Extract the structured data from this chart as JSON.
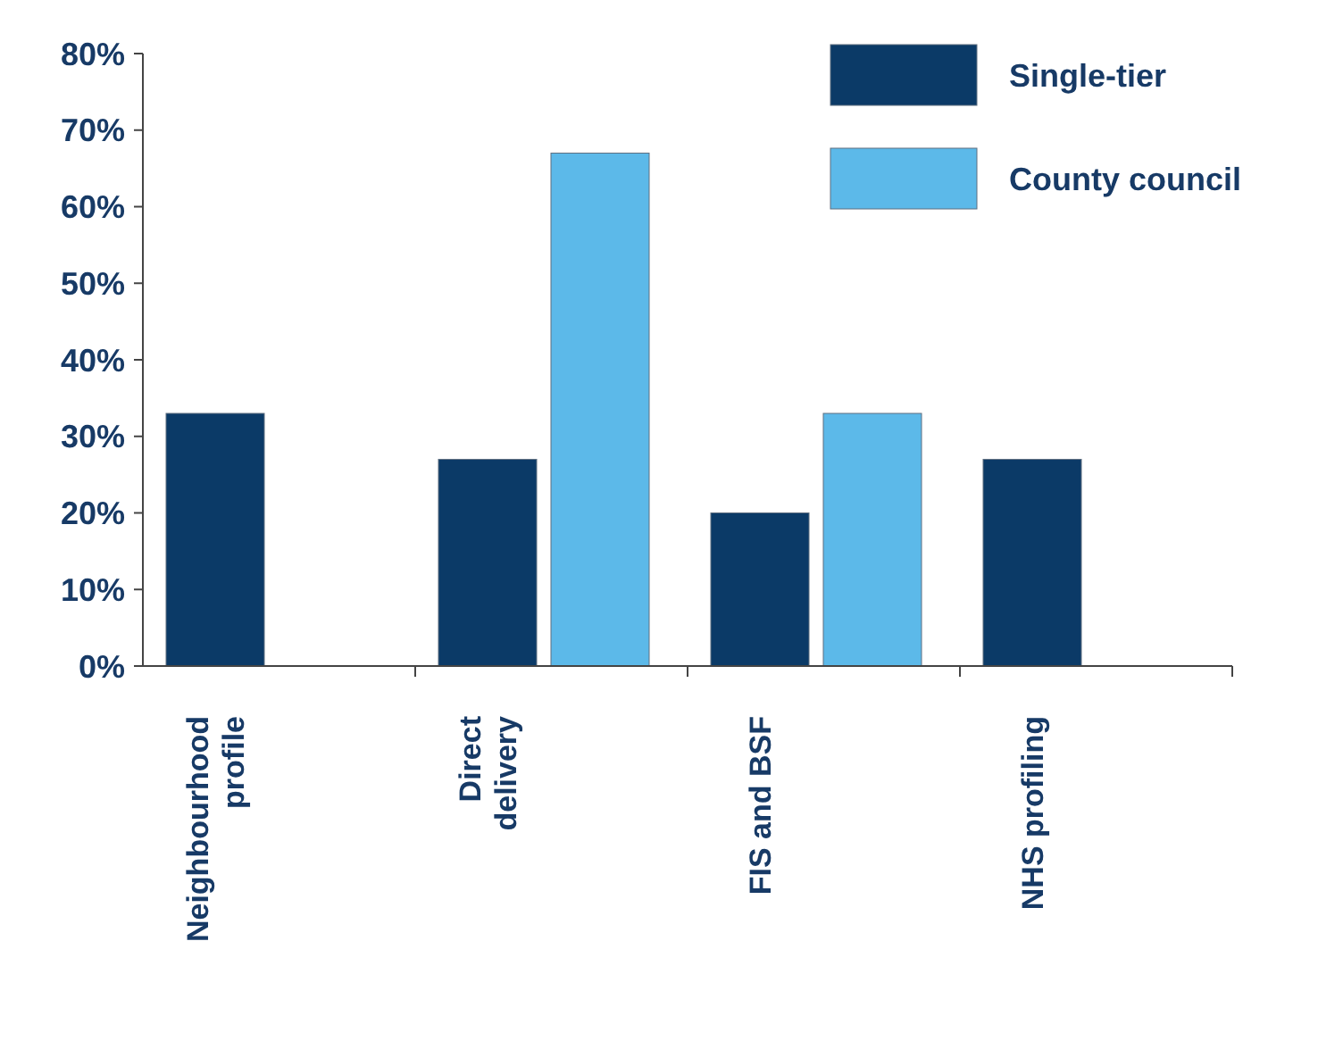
{
  "chart_data": {
    "type": "bar",
    "categories": [
      "Neighbourhood\nprofile",
      "Direct\ndelivery",
      "FIS and BSF",
      "NHS profiling"
    ],
    "series": [
      {
        "name": "Single-tier",
        "color": "#0b3a67",
        "values": [
          33,
          27,
          20,
          27
        ]
      },
      {
        "name": "County council",
        "color": "#5cb9e9",
        "values": [
          null,
          67,
          33,
          null
        ]
      }
    ],
    "ylim": [
      0,
      80
    ],
    "yticks": [
      {
        "value": 0,
        "label": "0%"
      },
      {
        "value": 10,
        "label": "10%"
      },
      {
        "value": 20,
        "label": "20%"
      },
      {
        "value": 30,
        "label": "30%"
      },
      {
        "value": 40,
        "label": "40%"
      },
      {
        "value": 50,
        "label": "50%"
      },
      {
        "value": 60,
        "label": "60%"
      },
      {
        "value": 70,
        "label": "70%"
      },
      {
        "value": 80,
        "label": "80%"
      }
    ],
    "legend": "top right"
  }
}
